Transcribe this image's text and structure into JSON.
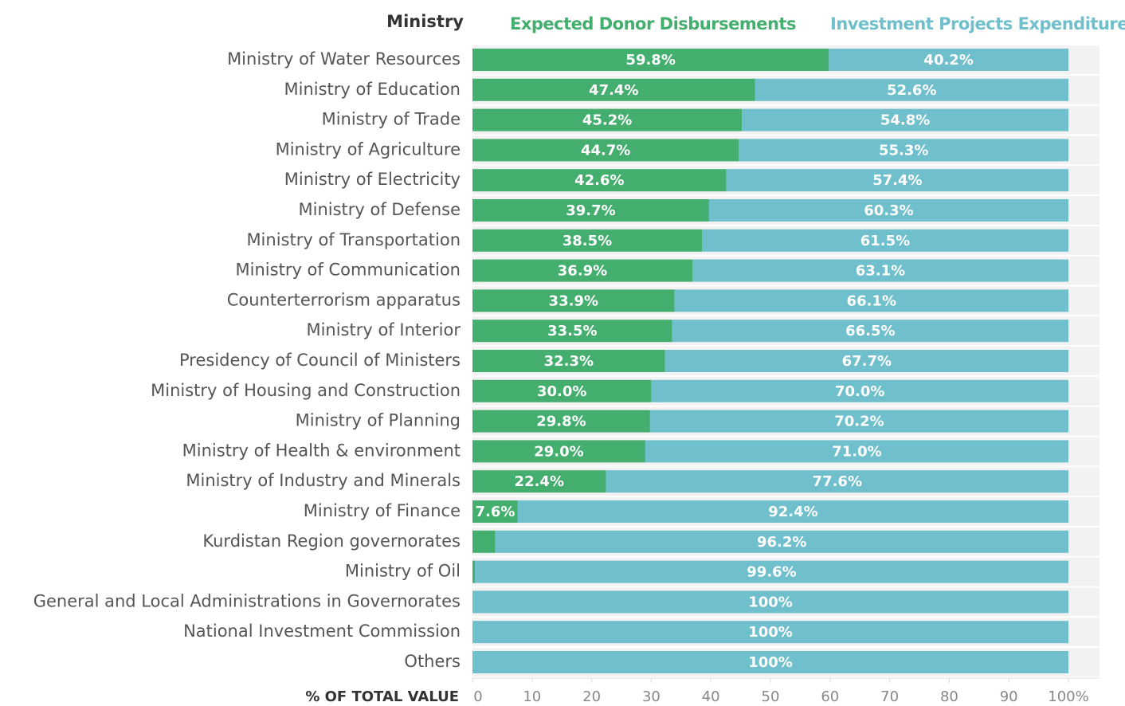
{
  "chart_data": {
    "type": "stacked-bar-horizontal",
    "category_axis_label": "Ministry",
    "x_axis_label": "% OF TOTAL VALUE",
    "categories": [
      "Ministry of Water Resources",
      "Ministry of Education",
      "Ministry of Trade",
      "Ministry of Agriculture",
      "Ministry of Electricity",
      "Ministry of Defense",
      "Ministry of Transportation",
      "Ministry of Communication",
      "Counterterrorism apparatus",
      "Ministry of Interior",
      "Presidency of Council of Ministers",
      "Ministry of Housing and Construction",
      "Ministry of Planning",
      "Ministry of Health & environment",
      "Ministry of Industry and Minerals",
      "Ministry of Finance",
      "Kurdistan Region governorates",
      "Ministry of Oil",
      "General and Local Administrations in Governorates",
      "National Investment Commission",
      "Others"
    ],
    "series": [
      {
        "name": "Expected Donor Disbursements",
        "color": "#43ae6e",
        "values": [
          59.8,
          47.4,
          45.2,
          44.7,
          42.6,
          39.7,
          38.5,
          36.9,
          33.9,
          33.5,
          32.3,
          30.0,
          29.8,
          29.0,
          22.4,
          7.6,
          3.8,
          0.4,
          0,
          0,
          0
        ],
        "value_labels": [
          "59.8%",
          "47.4%",
          "45.2%",
          "44.7%",
          "42.6%",
          "39.7%",
          "38.5%",
          "36.9%",
          "33.9%",
          "33.5%",
          "32.3%",
          "30.0%",
          "29.8%",
          "29.0%",
          "22.4%",
          "7.6%",
          "3.8%",
          null,
          null,
          null,
          null
        ]
      },
      {
        "name": "Investment Projects Expenditures",
        "color": "#6fbfcc",
        "values": [
          40.2,
          52.6,
          54.8,
          55.3,
          57.4,
          60.3,
          61.5,
          63.1,
          66.1,
          66.5,
          67.7,
          70.0,
          70.2,
          71.0,
          77.6,
          92.4,
          96.2,
          99.6,
          100,
          100,
          100
        ],
        "value_labels": [
          "40.2%",
          "52.6%",
          "54.8%",
          "55.3%",
          "57.4%",
          "60.3%",
          "61.5%",
          "63.1%",
          "66.1%",
          "66.5%",
          "67.7%",
          "70.0%",
          "70.2%",
          "71.0%",
          "77.6%",
          "92.4%",
          "96.2%",
          "99.6%",
          "100%",
          "100%",
          "100%"
        ]
      }
    ],
    "xlim": [
      0,
      100
    ],
    "xticks": [
      0,
      10,
      20,
      30,
      40,
      50,
      60,
      70,
      80,
      90,
      {
        "value": 100,
        "label": "100%"
      }
    ]
  }
}
